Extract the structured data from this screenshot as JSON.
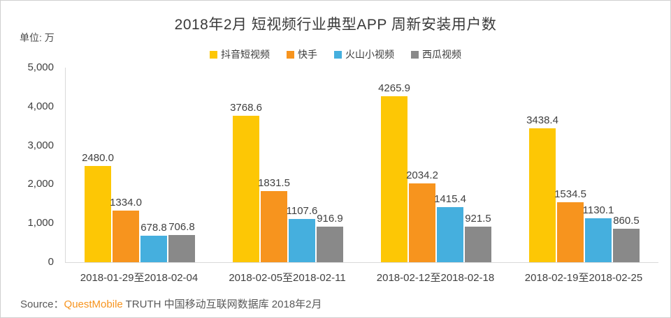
{
  "title": "2018年2月 短视频行业典型APP 周新安装用户数",
  "unit_label": "单位: 万",
  "source": {
    "prefix": "Source：",
    "brand": "QuestMobile",
    "rest": " TRUTH 中国移动互联网数据库 2018年2月"
  },
  "colors": {
    "douyin_yellow": "#FDC705",
    "kuaishou_orange": "#F7941E",
    "huoshan_blue": "#45AFDE",
    "xigua_gray": "#898989",
    "axis_line": "#D9D9D9",
    "text_dark": "#404040",
    "source_text": "#595959"
  },
  "chart_data": {
    "type": "bar",
    "title": "2018年2月 短视频行业典型APP 周新安装用户数",
    "unit": "万",
    "categories": [
      "2018-01-29至2018-02-04",
      "2018-02-05至2018-02-11",
      "2018-02-12至2018-02-18",
      "2018-02-19至2018-02-25"
    ],
    "series": [
      {
        "name": "抖音短视频",
        "color": "#FDC705",
        "values": [
          2480.0,
          3768.6,
          4265.9,
          3438.4
        ]
      },
      {
        "name": "快手",
        "color": "#F7941E",
        "values": [
          1334.0,
          1831.5,
          2034.2,
          1534.5
        ]
      },
      {
        "name": "火山小视频",
        "color": "#45AFDE",
        "values": [
          678.8,
          1107.6,
          1415.4,
          1130.1
        ]
      },
      {
        "name": "西瓜视频",
        "color": "#898989",
        "values": [
          706.8,
          916.9,
          921.5,
          860.5
        ]
      }
    ],
    "ylim": [
      0,
      5000
    ],
    "yticks": [
      0,
      1000,
      2000,
      3000,
      4000,
      5000
    ],
    "ytick_labels": [
      "0",
      "1,000",
      "2,000",
      "3,000",
      "4,000",
      "5,000"
    ],
    "grid": false,
    "legend_position": "top",
    "value_labels": true,
    "value_label_decimals": 1
  }
}
